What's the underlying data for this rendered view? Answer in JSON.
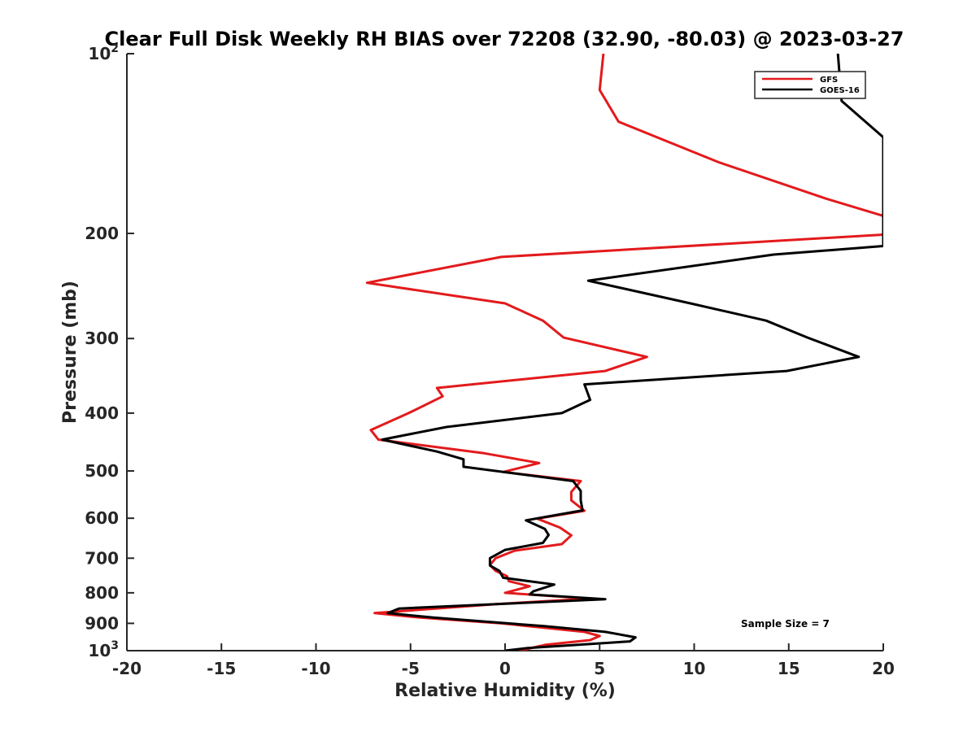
{
  "chart_data": {
    "type": "line",
    "title": "Clear Full Disk Weekly RH BIAS over 72208 (32.90, -80.03) @ 2023-03-27",
    "xlabel": "Relative Humidity (%)",
    "ylabel": "Pressure (mb)",
    "xlim": [
      -20,
      20
    ],
    "ylim": [
      1000,
      100
    ],
    "yscale": "log",
    "x_ticks": [
      "-20",
      "-15",
      "-10",
      "-5",
      "0",
      "5",
      "10",
      "15",
      "20"
    ],
    "y_ticks": [
      {
        "value": 100,
        "label": "10",
        "sup": "2"
      },
      {
        "value": 200,
        "label": "200",
        "sup": ""
      },
      {
        "value": 300,
        "label": "300",
        "sup": ""
      },
      {
        "value": 400,
        "label": "400",
        "sup": ""
      },
      {
        "value": 500,
        "label": "500",
        "sup": ""
      },
      {
        "value": 600,
        "label": "600",
        "sup": ""
      },
      {
        "value": 700,
        "label": "700",
        "sup": ""
      },
      {
        "value": 800,
        "label": "800",
        "sup": ""
      },
      {
        "value": 900,
        "label": "900",
        "sup": ""
      },
      {
        "value": 1000,
        "label": "10",
        "sup": "3"
      }
    ],
    "grid": false,
    "legend_position": "top-right",
    "annotation": "Sample Size = 7",
    "series": [
      {
        "name": "GFS",
        "color": "#e31a1c",
        "points": [
          [
            5.2,
            100
          ],
          [
            5.0,
            115
          ],
          [
            6.0,
            130
          ],
          [
            11.3,
            152
          ],
          [
            17.0,
            175
          ],
          [
            20.0,
            187
          ],
          [
            20.0,
            201
          ],
          [
            -0.2,
            219
          ],
          [
            -7.3,
            242
          ],
          [
            0.0,
            262
          ],
          [
            2.0,
            280
          ],
          [
            3.1,
            299
          ],
          [
            7.5,
            322
          ],
          [
            5.3,
            340
          ],
          [
            -3.6,
            363
          ],
          [
            -3.3,
            375
          ],
          [
            -5.1,
            400
          ],
          [
            -7.1,
            427
          ],
          [
            -6.7,
            443
          ],
          [
            -1.1,
            467
          ],
          [
            1.8,
            485
          ],
          [
            -0.1,
            502
          ],
          [
            4.0,
            520
          ],
          [
            3.5,
            542
          ],
          [
            3.5,
            560
          ],
          [
            4.2,
            583
          ],
          [
            1.7,
            601
          ],
          [
            2.9,
            622
          ],
          [
            3.5,
            641
          ],
          [
            3.0,
            663
          ],
          [
            0.5,
            680
          ],
          [
            -0.5,
            700
          ],
          [
            -0.8,
            719
          ],
          [
            -0.5,
            735
          ],
          [
            0.1,
            750
          ],
          [
            0.2,
            765
          ],
          [
            1.3,
            780
          ],
          [
            0.0,
            800
          ],
          [
            4.5,
            818
          ],
          [
            -0.3,
            835
          ],
          [
            -6.9,
            865
          ],
          [
            -4.5,
            880
          ],
          [
            -0.2,
            900
          ],
          [
            4.2,
            930
          ],
          [
            5.0,
            945
          ],
          [
            4.5,
            960
          ],
          [
            2.1,
            978
          ],
          [
            0.8,
            1000
          ]
        ]
      },
      {
        "name": "GOES-16",
        "color": "#000000",
        "points": [
          [
            17.6,
            100
          ],
          [
            17.8,
            120
          ],
          [
            20.0,
            138
          ],
          [
            20.0,
            210
          ],
          [
            14.2,
            217
          ],
          [
            4.4,
            240
          ],
          [
            9.8,
            262
          ],
          [
            13.8,
            280
          ],
          [
            16.0,
            299
          ],
          [
            18.7,
            322
          ],
          [
            14.9,
            340
          ],
          [
            4.2,
            358
          ],
          [
            4.5,
            380
          ],
          [
            3.0,
            400
          ],
          [
            -3.1,
            422
          ],
          [
            -6.5,
            443
          ],
          [
            -3.6,
            464
          ],
          [
            -2.2,
            478
          ],
          [
            -2.2,
            492
          ],
          [
            3.6,
            520
          ],
          [
            4.0,
            540
          ],
          [
            4.0,
            560
          ],
          [
            4.1,
            582
          ],
          [
            1.1,
            605
          ],
          [
            2.1,
            625
          ],
          [
            2.3,
            640
          ],
          [
            2.0,
            660
          ],
          [
            0.0,
            678
          ],
          [
            -0.8,
            700
          ],
          [
            -0.8,
            720
          ],
          [
            -0.3,
            735
          ],
          [
            -0.1,
            755
          ],
          [
            2.6,
            775
          ],
          [
            1.5,
            795
          ],
          [
            1.3,
            805
          ],
          [
            5.3,
            820
          ],
          [
            -5.6,
            850
          ],
          [
            -6.2,
            865
          ],
          [
            -3.8,
            880
          ],
          [
            2.1,
            910
          ],
          [
            5.3,
            930
          ],
          [
            6.9,
            950
          ],
          [
            6.6,
            965
          ],
          [
            1.2,
            990
          ],
          [
            0.0,
            1000
          ]
        ]
      }
    ]
  }
}
